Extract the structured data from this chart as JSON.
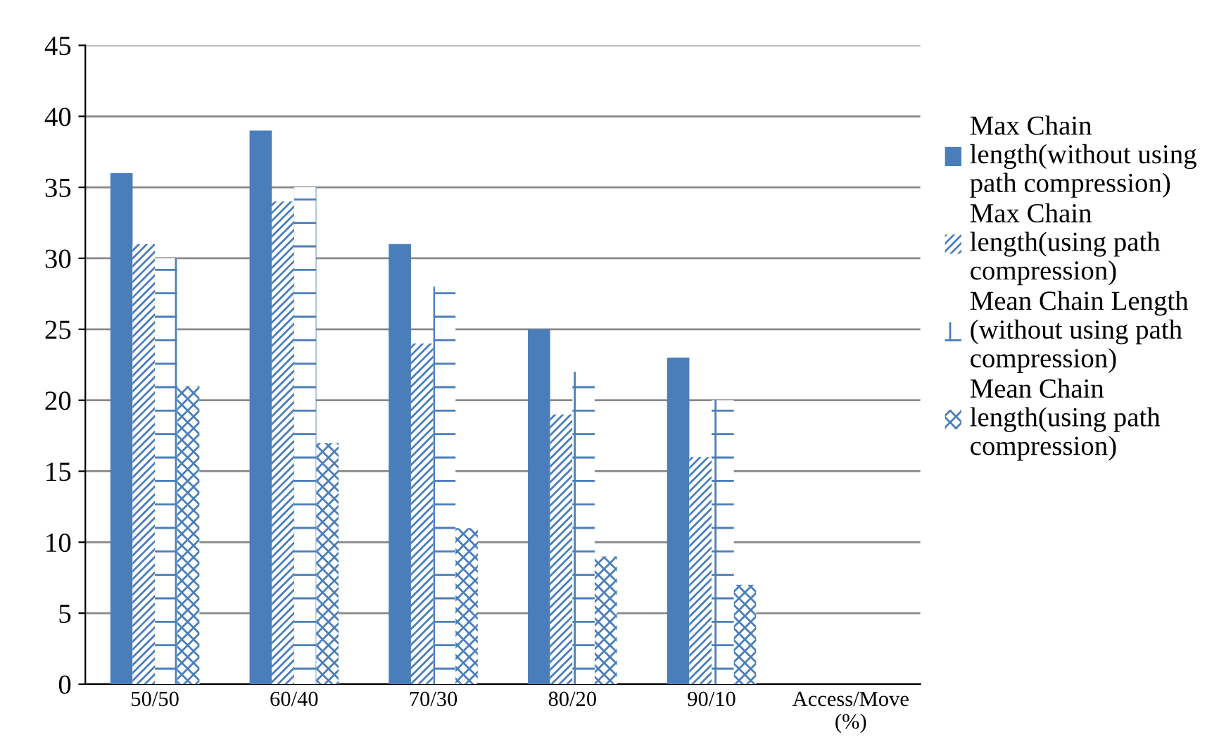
{
  "chart_data": {
    "type": "bar",
    "categories": [
      "50/50",
      "60/40",
      "70/30",
      "80/20",
      "90/10",
      "Access/Move\n(%)"
    ],
    "series": [
      {
        "name": "Max Chain\nlength(without using\npath compression)",
        "color": "#4a7ebb",
        "values": [
          36,
          39,
          31,
          25,
          23,
          null
        ]
      },
      {
        "name": "Max Chain\nlength(using path\ncompression)",
        "color": "#4a7ebb",
        "values": [
          31,
          34,
          24,
          19,
          16,
          null
        ]
      },
      {
        "name": "Mean Chain Length\n(without using path\ncompression)",
        "color": "#4a7ebb",
        "values": [
          30,
          35,
          28,
          22,
          20,
          null
        ]
      },
      {
        "name": "Mean Chain\nlength(using path\ncompression)",
        "color": "#4a7ebb",
        "values": [
          21,
          17,
          11,
          9,
          7,
          null
        ]
      }
    ],
    "ylim": [
      0,
      45
    ],
    "yticks": [
      0,
      5,
      10,
      15,
      20,
      25,
      30,
      35,
      40,
      45
    ],
    "grid": "y",
    "legend": "right"
  }
}
